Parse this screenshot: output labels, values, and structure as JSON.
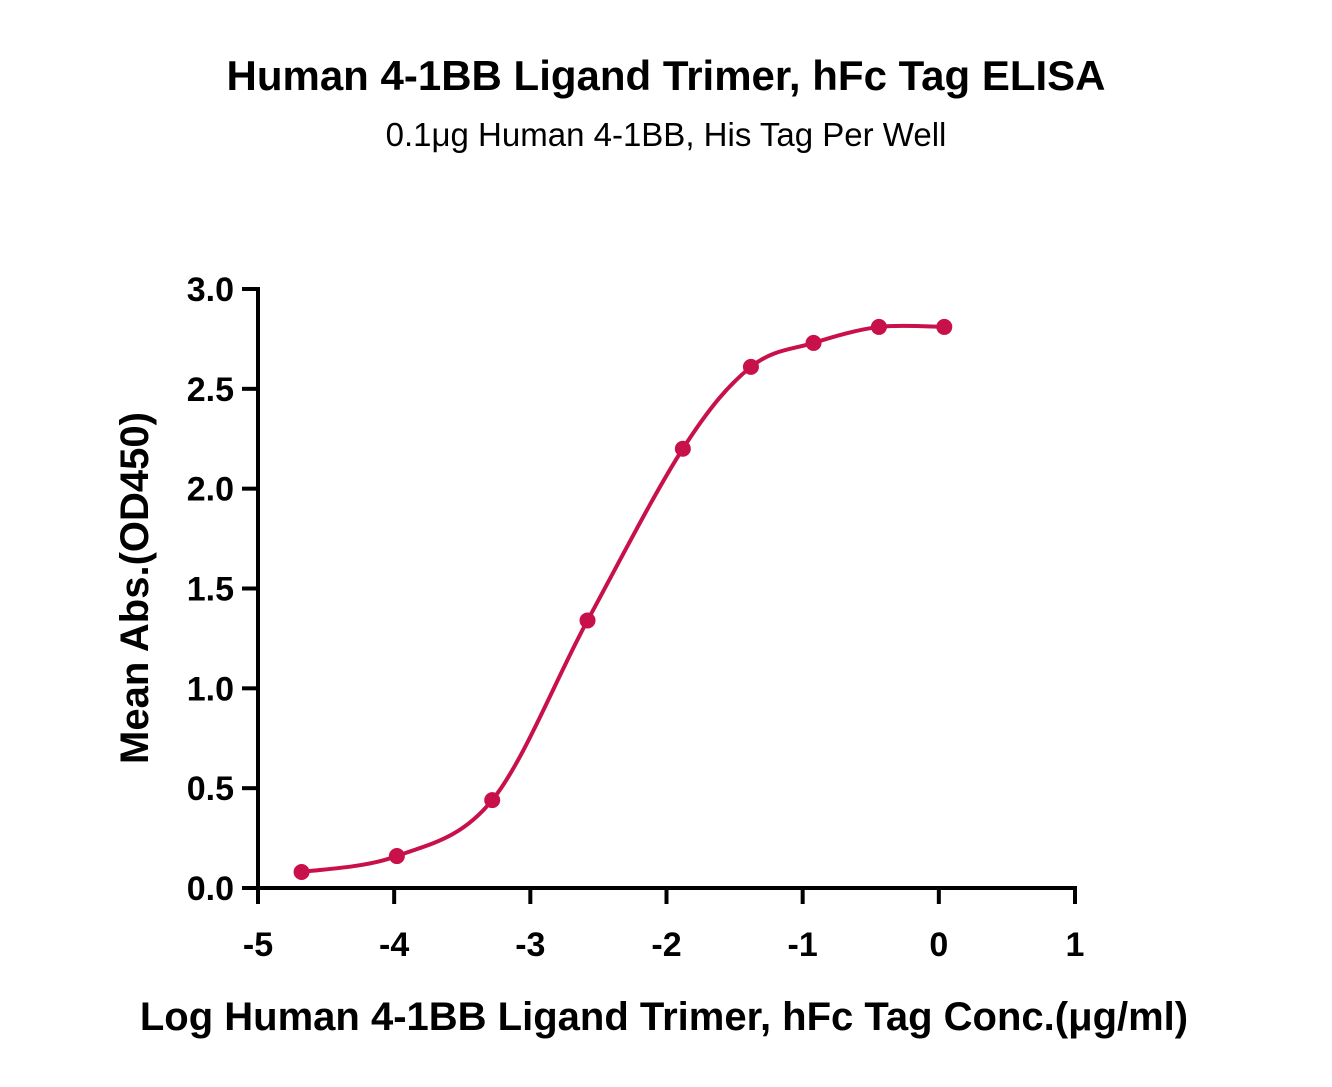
{
  "chart_data": {
    "type": "scatter",
    "title": "Human 4-1BB Ligand Trimer, hFc Tag ELISA",
    "subtitle": "0.1μg Human 4-1BB, His Tag Per Well",
    "xlabel": "Log Human 4-1BB Ligand Trimer, hFc Tag Conc.(μg/ml)",
    "ylabel": "Mean Abs.(OD450)",
    "xlim": [
      -5,
      1
    ],
    "ylim": [
      0,
      3
    ],
    "x_ticks": [
      -5,
      -4,
      -3,
      -2,
      -1,
      0,
      1
    ],
    "x_tick_labels": [
      "-5",
      "-4",
      "-3",
      "-2",
      "-1",
      "0",
      "1"
    ],
    "y_ticks": [
      0,
      0.5,
      1,
      1.5,
      2,
      2.5,
      3
    ],
    "y_tick_labels": [
      "0.0",
      "0.5",
      "1.0",
      "1.5",
      "2.0",
      "2.5",
      "3.0"
    ],
    "grid": false,
    "legend": "none",
    "series": [
      {
        "color": "#c8104a",
        "x": [
          -4.68,
          -3.98,
          -3.28,
          -2.58,
          -1.88,
          -1.38,
          -0.92,
          -0.44,
          0.04
        ],
        "y": [
          0.08,
          0.16,
          0.44,
          1.34,
          2.2,
          2.61,
          2.73,
          2.81,
          2.81
        ],
        "fit": "sigmoid"
      }
    ]
  }
}
